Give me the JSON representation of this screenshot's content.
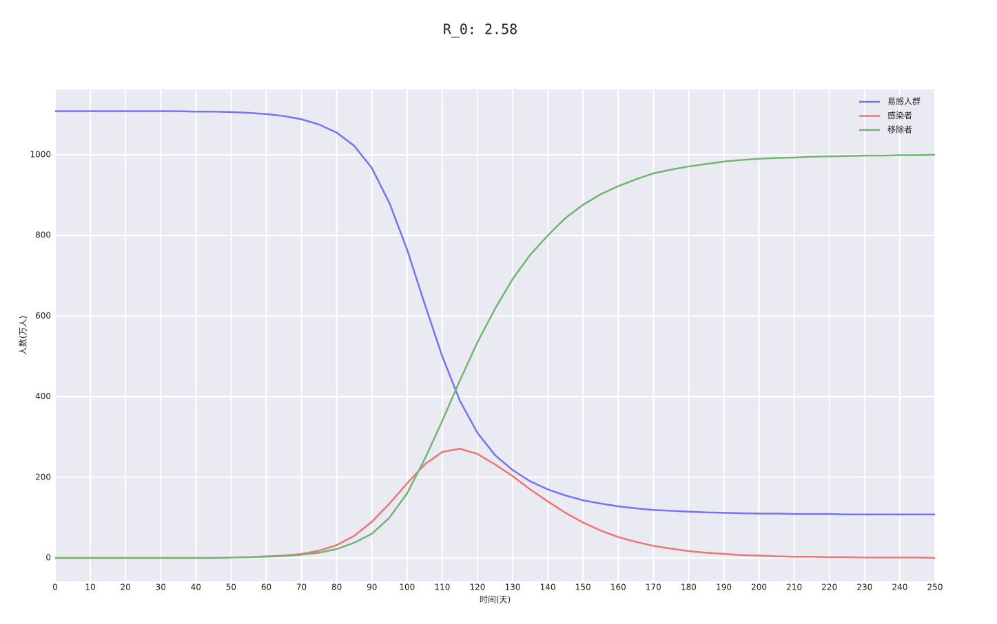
{
  "chart_data": {
    "type": "line",
    "title": "R_0: 2.58",
    "x_label": "时间(天)",
    "y_label": "人数(万人)",
    "x": [
      0,
      5,
      10,
      15,
      20,
      25,
      30,
      35,
      40,
      45,
      50,
      55,
      60,
      65,
      70,
      75,
      80,
      85,
      90,
      95,
      100,
      105,
      110,
      115,
      120,
      125,
      130,
      135,
      140,
      145,
      150,
      155,
      160,
      165,
      170,
      175,
      180,
      185,
      190,
      195,
      200,
      205,
      210,
      215,
      220,
      225,
      230,
      235,
      240,
      245,
      250
    ],
    "series": [
      {
        "name": "易感人群",
        "color": "#7373f5",
        "values": [
          1108,
          1108,
          1108,
          1108,
          1108,
          1108,
          1108,
          1108,
          1107,
          1107,
          1106,
          1104,
          1101,
          1096,
          1088,
          1075,
          1055,
          1022,
          967,
          880,
          765,
          630,
          500,
          390,
          310,
          255,
          218,
          190,
          170,
          155,
          143,
          135,
          128,
          123,
          119,
          117,
          115,
          113,
          112,
          111,
          110,
          110,
          109,
          109,
          109,
          108,
          108,
          108,
          108,
          108,
          108
        ]
      },
      {
        "name": "感染者",
        "color": "#f07474",
        "values": [
          0,
          0,
          0,
          0,
          0,
          0,
          0,
          0,
          0,
          0,
          1,
          2,
          4,
          6,
          10,
          18,
          32,
          55,
          90,
          135,
          185,
          232,
          263,
          271,
          258,
          232,
          203,
          170,
          140,
          112,
          88,
          68,
          52,
          40,
          30,
          23,
          17,
          13,
          10,
          7,
          6,
          4,
          3,
          3,
          2,
          2,
          1,
          1,
          1,
          1,
          0
        ]
      },
      {
        "name": "移除者",
        "color": "#72b472",
        "values": [
          0,
          0,
          0,
          0,
          0,
          0,
          0,
          0,
          0,
          0,
          1,
          2,
          3,
          5,
          8,
          13,
          22,
          38,
          60,
          100,
          160,
          245,
          340,
          440,
          535,
          618,
          692,
          752,
          800,
          843,
          876,
          902,
          922,
          939,
          954,
          963,
          971,
          977,
          983,
          987,
          990,
          992,
          993,
          995,
          996,
          997,
          998,
          998,
          999,
          999,
          1000
        ]
      }
    ],
    "xlim": [
      0,
      250
    ],
    "ylim": [
      -58,
      1162
    ],
    "xticks": [
      0,
      10,
      20,
      30,
      40,
      50,
      60,
      70,
      80,
      90,
      100,
      110,
      120,
      130,
      140,
      150,
      160,
      170,
      180,
      190,
      200,
      210,
      220,
      230,
      240,
      250
    ],
    "yticks": [
      0,
      200,
      400,
      600,
      800,
      1000
    ],
    "grid": true,
    "legend": "upper right"
  }
}
